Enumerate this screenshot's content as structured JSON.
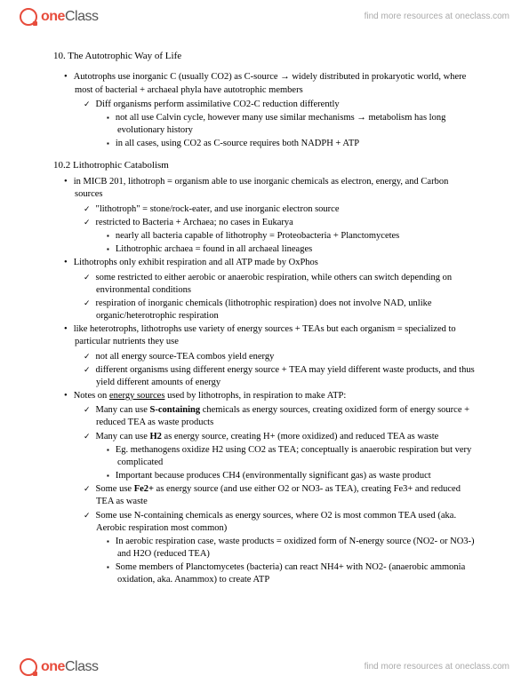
{
  "brand": {
    "one": "one",
    "class": "Class",
    "tagline": "find more resources at oneclass.com"
  },
  "section1": {
    "title": "10. The Autotrophic Way of Life",
    "b1": "Autotrophs use inorganic C (usually CO2) as C-source → widely distributed in prokaryotic world, where most of bacterial + archaeal phyla have autotrophic members",
    "b1a": "Diff organisms perform assimilative CO2-C reduction differently",
    "b1a1": "not all use Calvin cycle, however many use similar mechanisms → metabolism has long evolutionary history",
    "b1a2": "in all cases, using CO2 as C-source requires both NADPH + ATP"
  },
  "section2": {
    "title": "10.2 Lithotrophic Catabolism",
    "b1": "in MICB 201, lithotroph = organism able to use inorganic chemicals as electron, energy, and Carbon sources",
    "b1a": "\"lithotroph\" = stone/rock-eater, and use inorganic electron source",
    "b1b": "restricted to Bacteria + Archaea; no cases in Eukarya",
    "b1b1": "nearly all bacteria capable of lithotrophy = Proteobacteria + Planctomycetes",
    "b1b2": "Lithotrophic archaea = found in all archaeal lineages",
    "b2": "Lithotrophs only exhibit respiration and all ATP made by OxPhos",
    "b2a": "some restricted to either aerobic or anaerobic respiration, while others can switch depending on environmental conditions",
    "b2b": "respiration of inorganic chemicals (lithotrophic respiration) does not involve NAD, unlike organic/heterotrophic respiration",
    "b3": "like heterotrophs, lithotrophs use variety of energy sources + TEAs but each organism = specialized to particular nutrients they use",
    "b3a": "not all energy source-TEA combos yield energy",
    "b3b": "different organisms using different energy source + TEA may yield different waste products, and thus yield different amounts of energy",
    "b4_pre": "Notes on ",
    "b4_u": "energy sources",
    "b4_post": " used by lithotrophs, in respiration to make ATP:",
    "b4a_pre": "Many can use ",
    "b4a_b": "S-containing",
    "b4a_post": " chemicals as energy sources, creating oxidized form of energy source + reduced TEA as waste products",
    "b4b_pre": "Many can use ",
    "b4b_b": "H2",
    "b4b_post": " as energy source, creating H+ (more oxidized) and reduced TEA as waste",
    "b4b1": "Eg. methanogens oxidize H2 using CO2 as TEA; conceptually is anaerobic respiration but very complicated",
    "b4b2": "Important because produces CH4 (environmentally significant gas) as waste product",
    "b4c_pre": "Some use ",
    "b4c_b": "Fe2+",
    "b4c_post": " as energy source (and use either O2 or NO3- as TEA), creating Fe3+ and reduced TEA as waste",
    "b4d": "Some use N-containing chemicals as energy sources, where O2 is most common TEA used (aka. Aerobic respiration most common)",
    "b4d1": "In aerobic respiration case, waste products = oxidized form of N-energy source (NO2- or NO3-) and H2O (reduced TEA)",
    "b4d2": "Some members of Planctomycetes (bacteria) can react NH4+ with NO2- (anaerobic ammonia oxidation, aka. Anammox) to create ATP"
  }
}
